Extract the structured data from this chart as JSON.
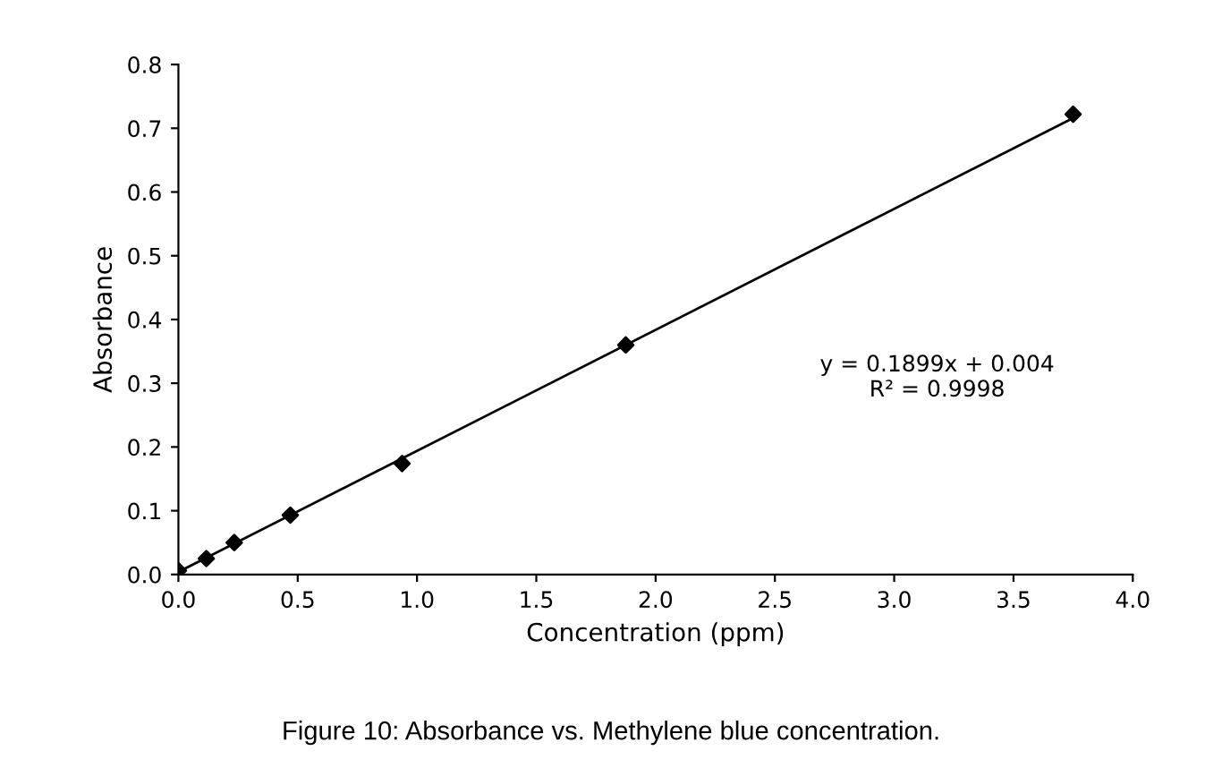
{
  "chart_data": {
    "type": "scatter",
    "xlabel": "Concentration (ppm)",
    "ylabel": "Absorbance",
    "series": [
      {
        "color": "#000000",
        "marker": "diamond",
        "x": [
          0,
          0.117,
          0.234,
          0.469,
          0.9375,
          1.875,
          3.75
        ],
        "values": [
          0.006,
          0.025,
          0.05,
          0.093,
          0.174,
          0.36,
          0.722
        ]
      },
      {
        "type": "line",
        "color": "#000000",
        "marker": "none",
        "x": [
          0,
          3.75
        ],
        "values": [
          0.004,
          0.716
        ]
      }
    ],
    "xlim": [
      0,
      4.0
    ],
    "xticks": [
      {
        "value": 0,
        "label": "0.0"
      },
      0.5,
      {
        "value": 1,
        "label": "1.0"
      },
      1.5,
      {
        "value": 2,
        "label": "2.0"
      },
      2.5,
      {
        "value": 3,
        "label": "3.0"
      },
      3.5,
      {
        "value": 4,
        "label": "4.0"
      }
    ],
    "ylim": [
      0,
      0.8
    ],
    "yticks": [
      {
        "value": 0,
        "label": "0.0"
      },
      0.1,
      0.2,
      0.3,
      0.4,
      0.5,
      0.6,
      0.7,
      0.8
    ],
    "grid": false,
    "legend": false,
    "annotations": [
      "y = 0.1899x + 0.004\nR² = 0.9998",
      "Figure 10: Absorbance vs. Methylene blue concentration."
    ]
  }
}
